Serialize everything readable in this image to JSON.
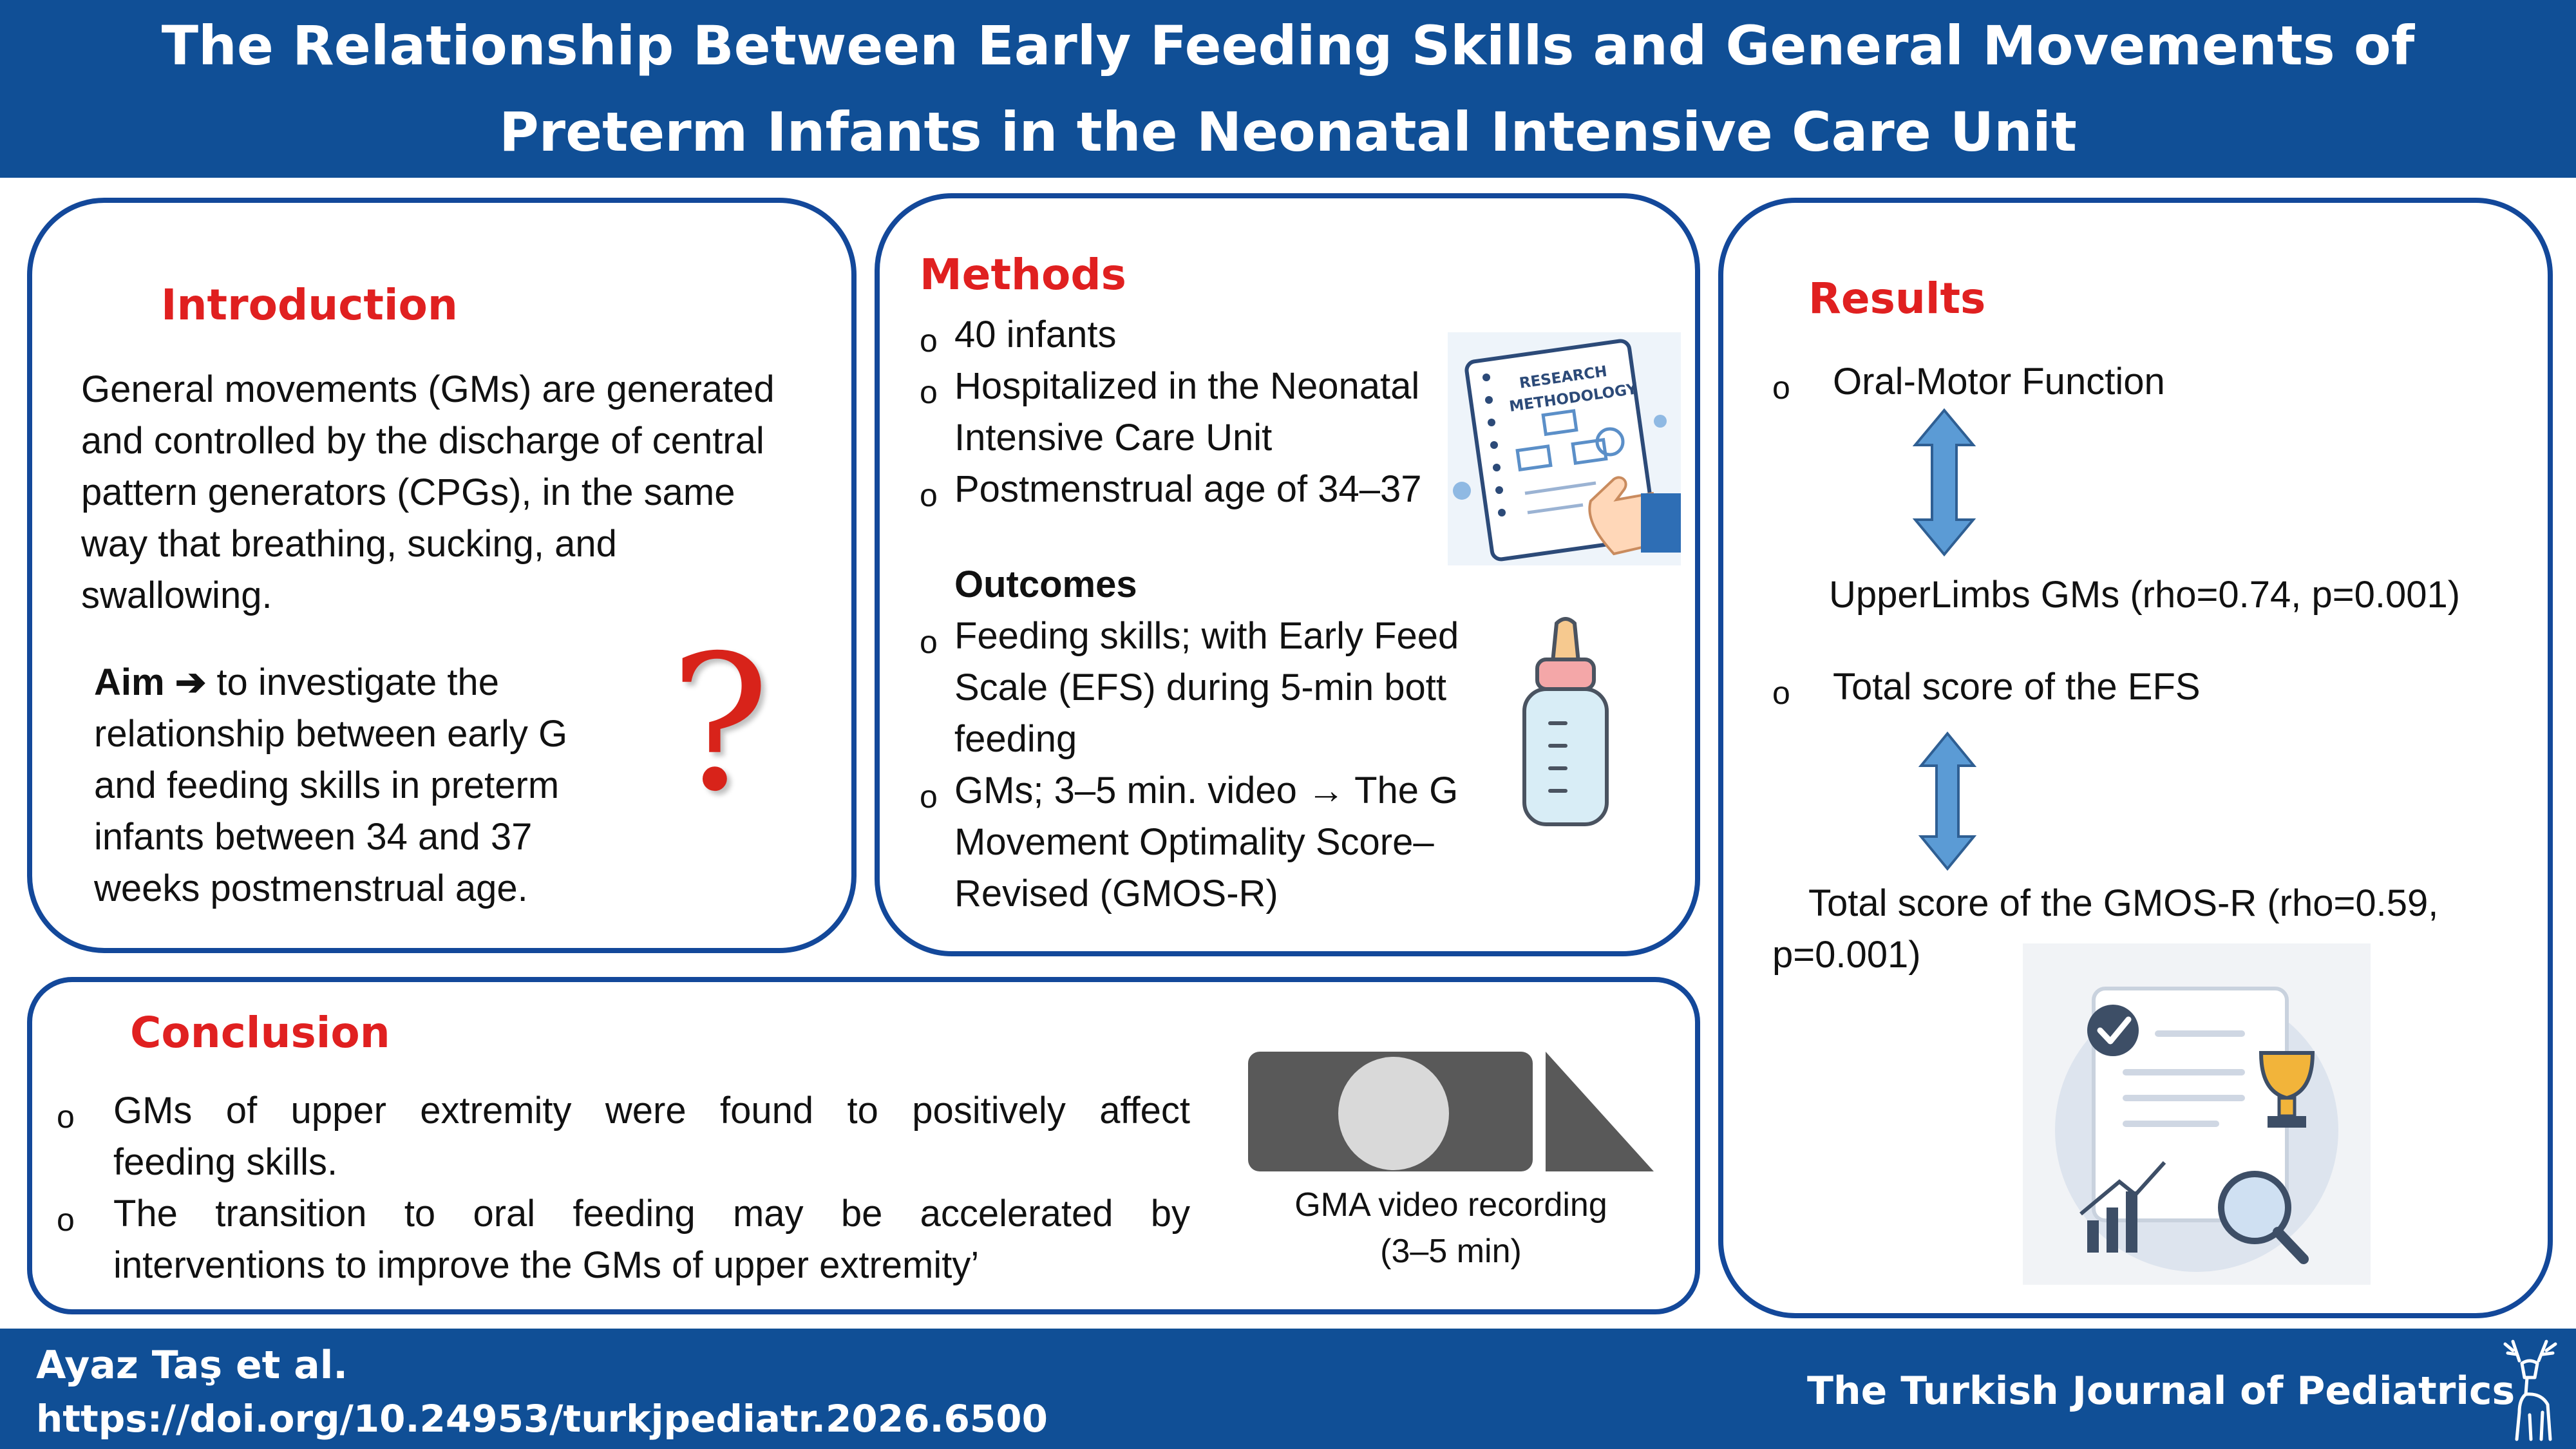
{
  "header": {
    "title_line1": "The Relationship Between Early Feeding Skills and General Movements of",
    "title_line2": "Preterm Infants in the Neonatal Intensive Care Unit"
  },
  "introduction": {
    "title": "Introduction",
    "text_lines": [
      "General movements (GMs) are generated",
      "and controlled by the discharge of central",
      "pattern generators (CPGs), in the same",
      "way that breathing, sucking, and",
      "swallowing."
    ],
    "aim_label": "Aim",
    "aim_arrow": "➔",
    "aim_lines": [
      "to investigate the",
      "relationship between early G",
      "and feeding skills in preterm",
      "infants between 34 and 37",
      "weeks postmenstrual age."
    ],
    "question_mark": "?"
  },
  "methods": {
    "title": "Methods",
    "bullet": "o",
    "items": [
      "40 infants",
      "Hospitalized in the Neonatal",
      "Intensive Care Unit",
      "Postmenstrual age of 34–37"
    ],
    "outcomes_title": "Outcomes",
    "outcomes": [
      "Feeding skills; with Early Feed",
      "Scale (EFS) during 5-min bott",
      "feeding",
      "GMs; 3–5 min. video → The G",
      "Movement Optimality Score–",
      "Revised (GMOS-R)"
    ],
    "book_label_1": "RESEARCH",
    "book_label_2": "METHODOLOGY"
  },
  "results": {
    "title": "Results",
    "bullet": "o",
    "item1": "Oral-Motor Function",
    "item1_result": "UpperLimbs GMs (rho=0.74, p=0.001)",
    "item2": "Total score of the EFS",
    "item2_result_line1": "Total score of the GMOS-R (rho=0.59,",
    "item2_result_line2": "p=0.001)"
  },
  "conclusion": {
    "title": "Conclusion",
    "bullet": "o",
    "item1_line1": "GMs of upper extremity were found to positively affect",
    "item1_line2": "feeding skills.",
    "item2_line1": "The transition to oral feeding may be accelerated by",
    "item2_line2": "interventions to improve the GMs of upper extremity’",
    "video_caption_line1": "GMA video recording",
    "video_caption_line2": "(3–5 min)"
  },
  "footer": {
    "authors": "Ayaz Taş et al.",
    "doi": "https://doi.org/10.24953/turkjpediatr.2026.6500",
    "journal": "The Turkish Journal of Pediatrics"
  },
  "colors": {
    "brand_blue": "#104F96",
    "panel_border": "#13489A",
    "title_red": "#E02020",
    "arrow_blue": "#5B9BD5"
  }
}
